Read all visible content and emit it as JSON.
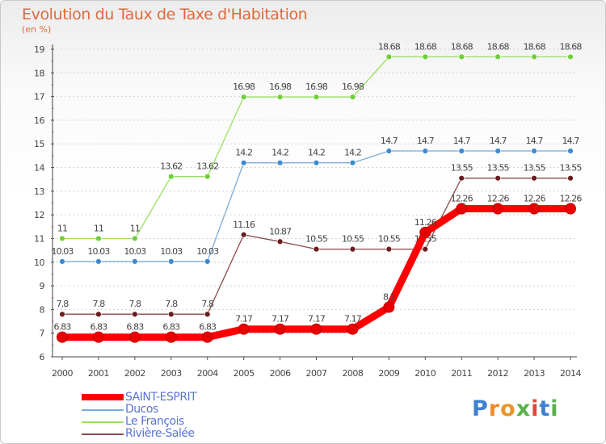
{
  "header": {
    "title": "Evolution du Taux de Taxe d'Habitation",
    "subtitle": "(en %)"
  },
  "logo": {
    "text": "Proxiti",
    "letter_colors": [
      "#3f7fd0",
      "#f08a2a",
      "#e8962b",
      "#59b14c",
      "#d94b3c",
      "#3f7fd0",
      "#59b14c"
    ]
  },
  "chart_data": {
    "type": "line",
    "title": "Evolution du Taux de Taxe d'Habitation",
    "ylabel": "(en %)",
    "xlabel": "",
    "x": [
      "2000",
      "2001",
      "2002",
      "2003",
      "2004",
      "2005",
      "2006",
      "2007",
      "2008",
      "2009",
      "2010",
      "2011",
      "2012",
      "2013",
      "2014"
    ],
    "ylim": [
      6,
      19
    ],
    "y_ticks": [
      6,
      7,
      8,
      9,
      10,
      11,
      12,
      13,
      14,
      15,
      16,
      17,
      18,
      19
    ],
    "grid": "horizontal",
    "legend_placement": "bottom-left",
    "series": [
      {
        "name": "Le François",
        "color": "#99e060",
        "marker_color": "#6fce3a",
        "values": [
          11,
          11,
          11,
          13.62,
          13.62,
          16.98,
          16.98,
          16.98,
          16.98,
          18.68,
          18.68,
          18.68,
          18.68,
          18.68,
          18.68
        ],
        "labels": [
          "11",
          "11",
          "11",
          "13.62",
          "13.62",
          "16.98",
          "16.98",
          "16.98",
          "16.98",
          "18.68",
          "18.68",
          "18.68",
          "18.68",
          "18.68",
          "18.68"
        ]
      },
      {
        "name": "Ducos",
        "color": "#7aaad8",
        "marker_color": "#3a8ad0",
        "values": [
          10.03,
          10.03,
          10.03,
          10.03,
          10.03,
          14.2,
          14.2,
          14.2,
          14.2,
          14.7,
          14.7,
          14.7,
          14.7,
          14.7,
          14.7
        ],
        "labels": [
          "10.03",
          "10.03",
          "10.03",
          "10.03",
          "10.03",
          "14.2",
          "14.2",
          "14.2",
          "14.2",
          "14.7",
          "14.7",
          "14.7",
          "14.7",
          "14.7",
          "14.7"
        ]
      },
      {
        "name": "Rivière-Salée",
        "color": "#8a4a4a",
        "marker_color": "#6a1c1c",
        "values": [
          7.8,
          7.8,
          7.8,
          7.8,
          7.8,
          11.16,
          10.87,
          10.55,
          10.55,
          10.55,
          10.55,
          13.55,
          13.55,
          13.55,
          13.55
        ],
        "labels": [
          "7.8",
          "7.8",
          "7.8",
          "7.8",
          "7.8",
          "11.16",
          "10.87",
          "10.55",
          "10.55",
          "10.55",
          "10.55",
          "13.55",
          "13.55",
          "13.55",
          "13.55"
        ]
      },
      {
        "name": "SAINT-ESPRIT",
        "color": "#ff0000",
        "marker_color": "#e80000",
        "highlight": true,
        "values": [
          6.83,
          6.83,
          6.83,
          6.83,
          6.83,
          7.17,
          7.17,
          7.17,
          7.17,
          8.1,
          11.26,
          12.26,
          12.26,
          12.26,
          12.26
        ],
        "labels": [
          "6.83",
          "6.83",
          "6.83",
          "6.83",
          "6.83",
          "7.17",
          "7.17",
          "7.17",
          "7.17",
          "8.1",
          "11.26",
          "12.26",
          "12.26",
          "12.26",
          "12.26"
        ]
      }
    ]
  },
  "legend": {
    "items": [
      {
        "label": "SAINT-ESPRIT",
        "color": "#ff0000",
        "thick": true
      },
      {
        "label": "Ducos",
        "color": "#7aaad8",
        "thick": false
      },
      {
        "label": "Le François",
        "color": "#99e060",
        "thick": false
      },
      {
        "label": "Rivière-Salée",
        "color": "#8a4a4a",
        "thick": false
      }
    ]
  }
}
